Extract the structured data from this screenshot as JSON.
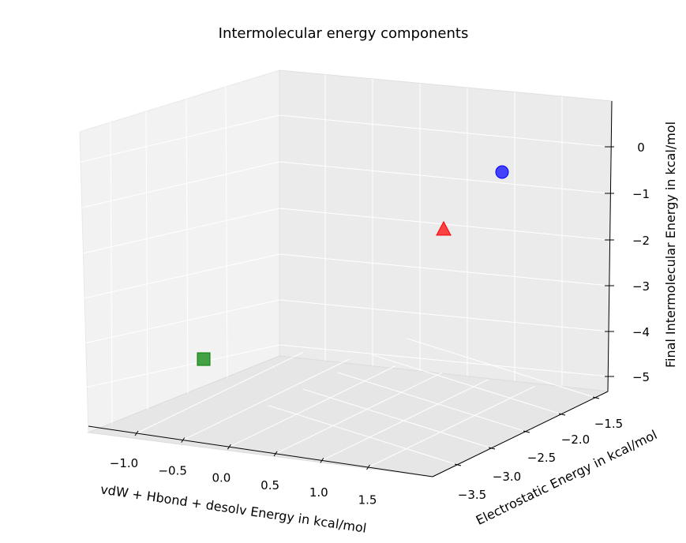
{
  "chart_data": {
    "type": "scatter",
    "projection": "3d",
    "title": "Intermolecular energy components",
    "xlabel": "vdW + Hbond + desolv Energy in kcal/mol",
    "ylabel": "Electrostatic Energy in kcal/mol",
    "zlabel": "Final Intermolecular Energy in kcal/mol",
    "x_ticks": [
      "−1.0",
      "−0.5",
      "0.0",
      "0.5",
      "1.0",
      "1.5"
    ],
    "y_ticks": [
      "−3.5",
      "−3.0",
      "−2.5",
      "−2.0",
      "−1.5"
    ],
    "z_ticks": [
      "−5",
      "−4",
      "−3",
      "−2",
      "−1",
      "0"
    ],
    "grid": true,
    "points": [
      {
        "marker": "circle",
        "color": "#0000ff",
        "x": 1.7,
        "y": -1.5,
        "z": -0.3
      },
      {
        "marker": "triangle",
        "color": "#ff0000",
        "x": 1.3,
        "y": -2.5,
        "z": -1.6
      },
      {
        "marker": "square",
        "color": "#008000",
        "x": -1.3,
        "y": -1.5,
        "z": -5.0
      }
    ]
  }
}
